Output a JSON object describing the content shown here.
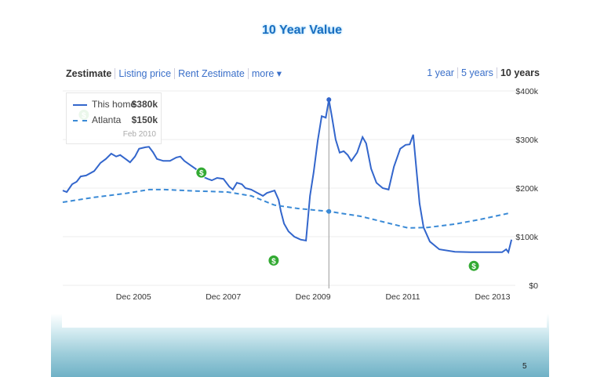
{
  "title": "10 Year Value",
  "tabs": [
    {
      "label": "Zestimate",
      "active": true
    },
    {
      "label": "Listing price"
    },
    {
      "label": "Rent Zestimate"
    },
    {
      "label": "more ▾"
    }
  ],
  "ranges": [
    {
      "label": "1 year"
    },
    {
      "label": "5 years"
    },
    {
      "label": "10 years",
      "active": true
    }
  ],
  "legend": {
    "items": [
      {
        "name": "This home",
        "value": "$380k"
      },
      {
        "name": "Atlanta",
        "value": "$150k"
      }
    ],
    "date": "Feb 2010"
  },
  "page_number": "5",
  "colors": {
    "home": "#3366cc",
    "atlanta": "#3a8ad6",
    "marker": "#33aa33"
  },
  "chart_data": {
    "type": "line",
    "xlim": [
      2004.15,
      2014.2
    ],
    "ylim": [
      0,
      400
    ],
    "x_ticks": [
      {
        "x": 2005.92,
        "label": "Dec 2005"
      },
      {
        "x": 2007.92,
        "label": "Dec 2007"
      },
      {
        "x": 2009.92,
        "label": "Dec 2009"
      },
      {
        "x": 2011.92,
        "label": "Dec 2011"
      },
      {
        "x": 2013.92,
        "label": "Dec 2013"
      }
    ],
    "y_ticks": [
      {
        "y": 0,
        "label": "$0"
      },
      {
        "y": 100,
        "label": "$100k"
      },
      {
        "y": 200,
        "label": "$200k"
      },
      {
        "y": 300,
        "label": "$300k"
      },
      {
        "y": 400,
        "label": "$400k"
      }
    ],
    "hover": {
      "x": 2010.08,
      "label": "Feb 2010"
    },
    "series": [
      {
        "name": "This home",
        "x": [
          2004.15,
          2004.24,
          2004.36,
          2004.46,
          2004.55,
          2004.67,
          2004.85,
          2004.99,
          2005.11,
          2005.23,
          2005.34,
          2005.43,
          2005.55,
          2005.65,
          2005.76,
          2005.85,
          2005.99,
          2006.07,
          2006.16,
          2006.25,
          2006.39,
          2006.54,
          2006.68,
          2006.77,
          2006.86,
          2006.98,
          2007.12,
          2007.26,
          2007.38,
          2007.47,
          2007.59,
          2007.73,
          2007.86,
          2007.94,
          2008.03,
          2008.14,
          2008.22,
          2008.35,
          2008.49,
          2008.61,
          2008.7,
          2008.87,
          2008.96,
          2009.01,
          2009.08,
          2009.18,
          2009.31,
          2009.45,
          2009.57,
          2009.66,
          2009.74,
          2009.83,
          2009.92,
          2010.01,
          2010.08,
          2010.15,
          2010.23,
          2010.32,
          2010.41,
          2010.5,
          2010.58,
          2010.71,
          2010.83,
          2010.91,
          2011.02,
          2011.14,
          2011.28,
          2011.41,
          2011.53,
          2011.67,
          2011.79,
          2011.88,
          2011.96,
          2012.02,
          2012.1,
          2012.19,
          2012.33,
          2012.54,
          2012.89,
          2013.24,
          2013.94,
          2014.03,
          2014.08,
          2014.15
        ],
        "y": [
          195,
          192,
          208,
          213,
          224,
          226,
          235,
          252,
          260,
          271,
          265,
          268,
          260,
          253,
          265,
          281,
          284,
          285,
          274,
          260,
          256,
          256,
          263,
          265,
          256,
          248,
          239,
          224,
          219,
          216,
          221,
          219,
          203,
          197,
          211,
          208,
          200,
          197,
          190,
          184,
          190,
          195,
          176,
          152,
          127,
          111,
          100,
          94,
          92,
          184,
          232,
          297,
          348,
          345,
          382,
          345,
          300,
          273,
          276,
          268,
          256,
          273,
          305,
          292,
          240,
          211,
          200,
          197,
          244,
          281,
          289,
          290,
          310,
          248,
          168,
          119,
          90,
          74,
          69,
          68,
          68,
          74,
          68,
          94
        ]
      },
      {
        "name": "Atlanta",
        "dashed": true,
        "x": [
          2004.15,
          2004.85,
          2005.55,
          2006.07,
          2006.42,
          2007.12,
          2007.82,
          2008.35,
          2008.87,
          2009.39,
          2010.09,
          2010.79,
          2011.49,
          2011.84,
          2012.28,
          2012.89,
          2013.42,
          2014.08
        ],
        "y": [
          171,
          181,
          189,
          197,
          197,
          194,
          192,
          184,
          165,
          158,
          152,
          142,
          126,
          118,
          119,
          126,
          135,
          148
        ]
      }
    ],
    "markers": [
      {
        "x": 2004.62,
        "y": 351
      },
      {
        "x": 2007.24,
        "y": 232
      },
      {
        "x": 2008.85,
        "y": 51
      },
      {
        "x": 2013.31,
        "y": 40
      }
    ]
  }
}
